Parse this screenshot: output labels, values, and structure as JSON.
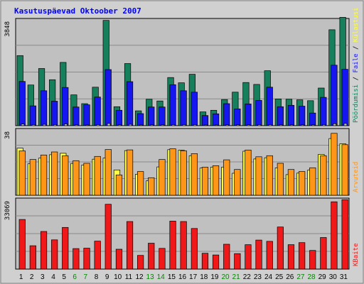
{
  "chart_data": {
    "type": "bar",
    "title": "Kasutuspäevad Oktoober 2007",
    "categories": [
      "1",
      "2",
      "3",
      "4",
      "5",
      "6",
      "7",
      "8",
      "9",
      "10",
      "11",
      "12",
      "13",
      "14",
      "15",
      "16",
      "17",
      "18",
      "19",
      "20",
      "21",
      "22",
      "23",
      "24",
      "25",
      "26",
      "27",
      "28",
      "29",
      "30",
      "31"
    ],
    "weekend_days": [
      "6",
      "7",
      "13",
      "14",
      "20",
      "21",
      "27",
      "28"
    ],
    "panels": [
      {
        "name": "top",
        "max_label": "3848",
        "ylim": [
          0,
          3848
        ],
        "series": [
          {
            "name": "Pöördumisi",
            "color": "#16805c",
            "values": [
              2550,
              1480,
              2080,
              1670,
              2300,
              1120,
              800,
              1400,
              3830,
              690,
              2260,
              540,
              960,
              900,
              1750,
              1560,
              1870,
              500,
              560,
              950,
              1220,
              1570,
              1500,
              2000,
              970,
              960,
              940,
              910,
              1370,
              3490,
              3940
            ]
          },
          {
            "name": "Faile",
            "color": "#1616f0",
            "values": [
              1610,
              720,
              1270,
              890,
              1390,
              680,
              760,
              1040,
              2040,
              560,
              1600,
              440,
              680,
              680,
              1490,
              1270,
              1220,
              370,
              430,
              800,
              610,
              790,
              920,
              1400,
              690,
              740,
              710,
              460,
              1030,
              2200,
              2050
            ]
          },
          {
            "name": "Külastusi",
            "color": "#bfbfbf",
            "values": [
              60,
              40,
              50,
              40,
              60,
              30,
              20,
              40,
              80,
              30,
              50,
              20,
              30,
              30,
              40,
              40,
              40,
              20,
              20,
              30,
              30,
              30,
              40,
              40,
              30,
              30,
              30,
              30,
              40,
              70,
              80
            ]
          }
        ]
      },
      {
        "name": "middle",
        "max_label": "38",
        "ylim": [
          0,
          38
        ],
        "series": [
          {
            "name": "Külastusi",
            "color": "#ffff40",
            "values": [
              27.4,
              18.3,
              21.6,
              23.6,
              24.4,
              18.5,
              17.6,
              21.0,
              21.6,
              14.7,
              26.0,
              12.2,
              8.4,
              16.5,
              26.5,
              26.2,
              23.0,
              15.8,
              16.4,
              16.4,
              12.8,
              25.6,
              21.1,
              21.8,
              15.9,
              12.0,
              12.9,
              14.6,
              23.8,
              33.0,
              30.0
            ]
          },
          {
            "name": "Arvuteid",
            "color": "#ff9618",
            "values": [
              25.8,
              20.8,
              23.4,
              25.2,
              23.0,
              20.1,
              18.6,
              22.6,
              26.6,
              11.8,
              26.4,
              13.8,
              10.2,
              20.8,
              27.0,
              25.9,
              24.2,
              16.3,
              17.2,
              20.6,
              15.0,
              26.3,
              22.4,
              23.0,
              18.6,
              15.0,
              13.8,
              16.0,
              23.0,
              36.0,
              29.4
            ]
          }
        ]
      },
      {
        "name": "bottom",
        "max_label": "33069",
        "ylim": [
          0,
          33069
        ],
        "series": [
          {
            "name": "KBaite",
            "color": "#f01818",
            "values": [
              23600,
              11100,
              17900,
              13900,
              19800,
              9750,
              9950,
              13300,
              30800,
              9460,
              22600,
              6500,
              12300,
              9850,
              22800,
              22600,
              19300,
              7530,
              6720,
              11800,
              7350,
              11600,
              13800,
              13200,
              20000,
              11600,
              12600,
              8860,
              15000,
              32000,
              33000
            ]
          }
        ]
      }
    ],
    "right_labels": {
      "top": [
        {
          "text": "Pöördumisi",
          "color": "#16805c"
        },
        {
          "text": "Faile",
          "color": "#1616f0"
        },
        {
          "text": "Külastusi",
          "color": "#ffff40"
        }
      ],
      "middle": [
        {
          "text": "Arvuteid",
          "color": "#ff9618"
        }
      ],
      "bottom": [
        {
          "text": "KBaite",
          "color": "#f01818"
        }
      ]
    },
    "separator": " / ",
    "grid": true
  }
}
